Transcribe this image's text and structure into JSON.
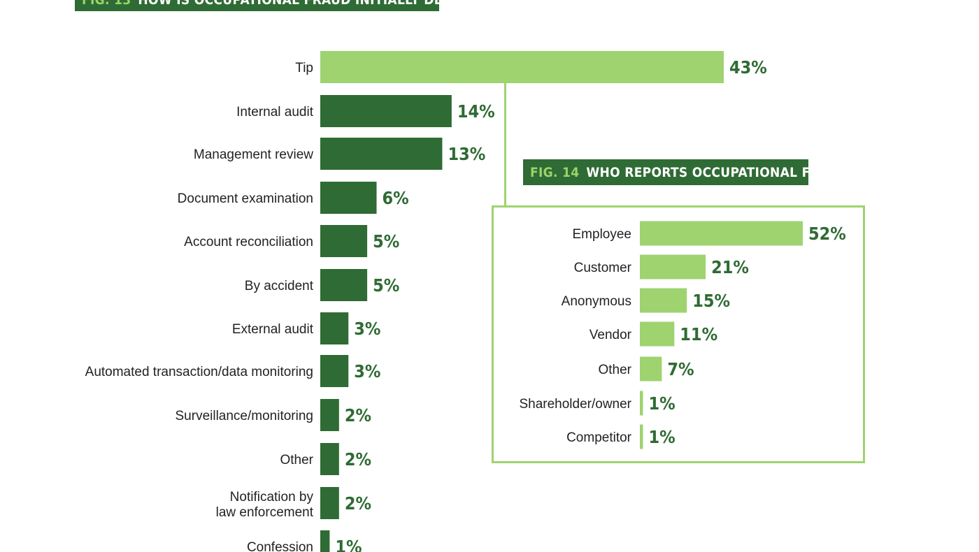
{
  "chart_data": [
    {
      "type": "bar",
      "orientation": "horizontal",
      "figure_number": "FIG. 13",
      "title": "HOW IS OCCUPATIONAL FRAUD INITIALLY DETECTED?",
      "categories": [
        "Tip",
        "Internal audit",
        "Management review",
        "Document examination",
        "Account reconciliation",
        "By accident",
        "External audit",
        "Automated transaction/data monitoring",
        "Surveillance/monitoring",
        "Other",
        "Notification by law enforcement",
        "Confession"
      ],
      "values": [
        43,
        14,
        13,
        6,
        5,
        5,
        3,
        3,
        2,
        2,
        2,
        1
      ],
      "value_labels": [
        "43%",
        "14%",
        "13%",
        "6%",
        "5%",
        "5%",
        "3%",
        "3%",
        "2%",
        "2%",
        "2%",
        "1%"
      ],
      "unit": "%",
      "colors": {
        "highlight": "#9ed36f",
        "bar": "#2f6b34",
        "label": "#2f6b34"
      }
    },
    {
      "type": "bar",
      "orientation": "horizontal",
      "figure_number": "FIG. 14",
      "title": "WHO REPORTS OCCUPATIONAL FRAUD?",
      "categories": [
        "Employee",
        "Customer",
        "Anonymous",
        "Vendor",
        "Other",
        "Shareholder/owner",
        "Competitor"
      ],
      "values": [
        52,
        21,
        15,
        11,
        7,
        1,
        1
      ],
      "value_labels": [
        "52%",
        "21%",
        "15%",
        "11%",
        "7%",
        "1%",
        "1%"
      ],
      "unit": "%",
      "colors": {
        "bar": "#9ed36f",
        "label": "#2f6b34",
        "frame": "#9ed36f"
      }
    }
  ]
}
